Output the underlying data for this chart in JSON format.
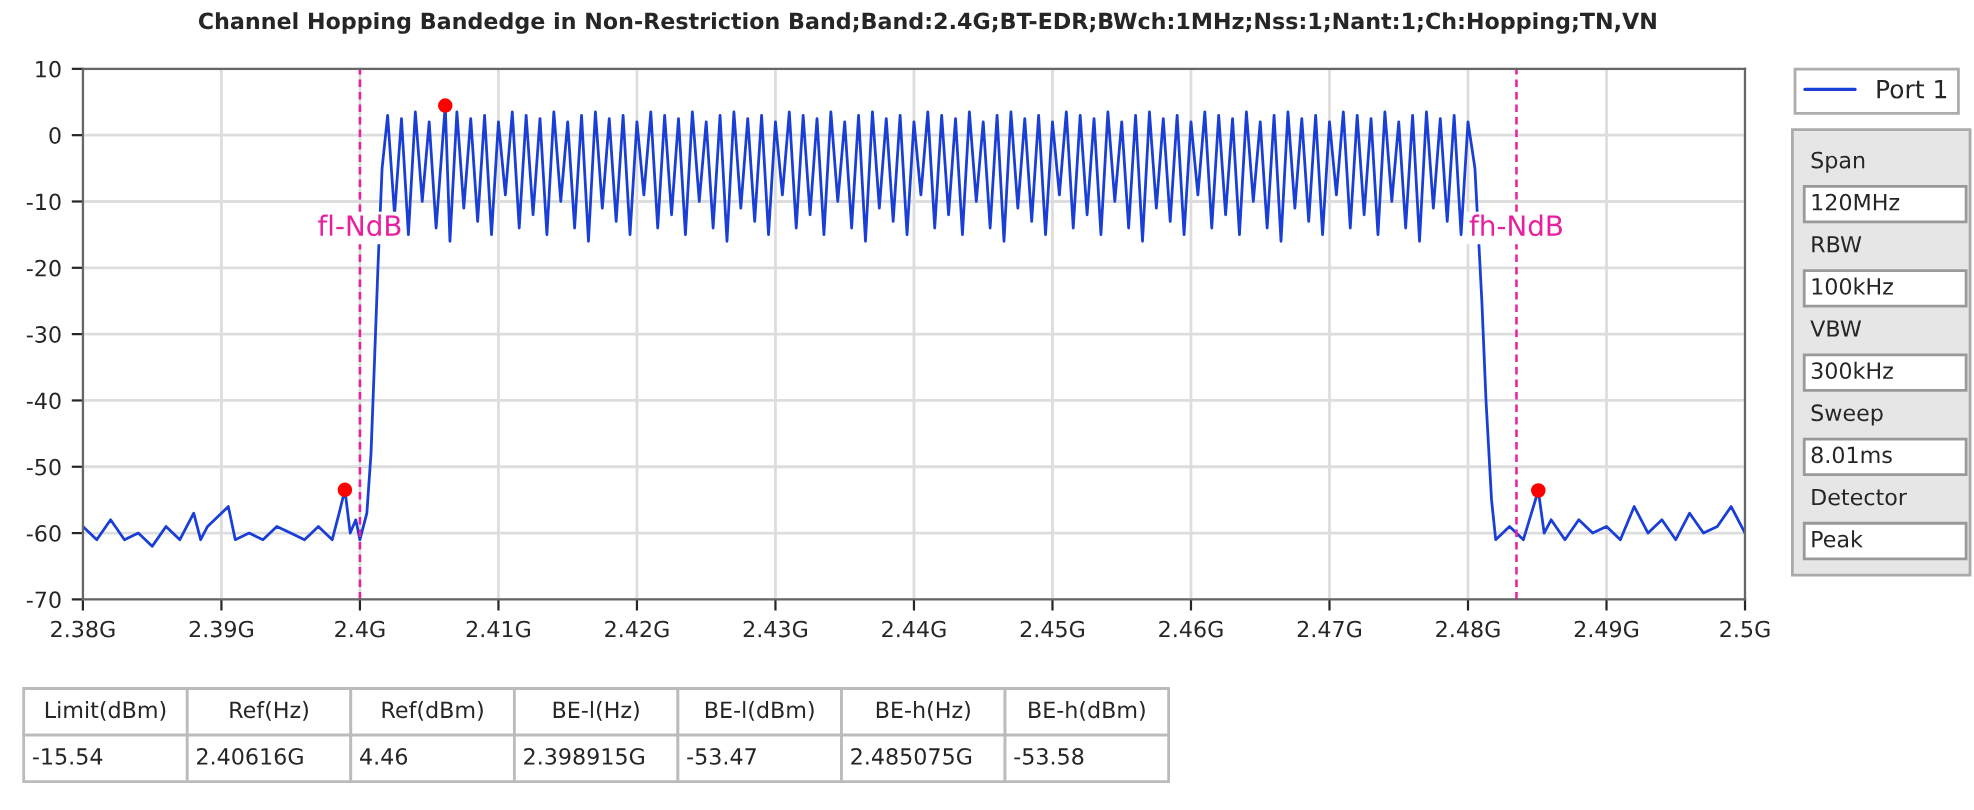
{
  "chart_data": {
    "type": "line",
    "title": "Channel Hopping Bandedge in Non-Restriction Band;Band:2.4G;BT-EDR;BWch:1MHz;Nss:1;Nant:1;Ch:Hopping;TN,VN",
    "xlim": [
      2.38,
      2.5
    ],
    "xticks": [
      {
        "value": 2.38,
        "label": "2.38G"
      },
      {
        "value": 2.39,
        "label": "2.39G"
      },
      {
        "value": 2.4,
        "label": "2.4G"
      },
      {
        "value": 2.41,
        "label": "2.41G"
      },
      {
        "value": 2.42,
        "label": "2.42G"
      },
      {
        "value": 2.43,
        "label": "2.43G"
      },
      {
        "value": 2.44,
        "label": "2.44G"
      },
      {
        "value": 2.45,
        "label": "2.45G"
      },
      {
        "value": 2.46,
        "label": "2.46G"
      },
      {
        "value": 2.47,
        "label": "2.47G"
      },
      {
        "value": 2.48,
        "label": "2.48G"
      },
      {
        "value": 2.49,
        "label": "2.49G"
      },
      {
        "value": 2.5,
        "label": "2.5G"
      }
    ],
    "ylim": [
      -70,
      10
    ],
    "yticks": [
      -70,
      -60,
      -50,
      -40,
      -30,
      -20,
      -10,
      0,
      10
    ],
    "grid": true,
    "legend": "right",
    "series": [
      {
        "name": "Port 1",
        "color": "#1a3fd6",
        "marker": "none",
        "line_style": "solid",
        "x": [
          2.38,
          2.381,
          2.382,
          2.383,
          2.384,
          2.385,
          2.386,
          2.387,
          2.388,
          2.3885,
          2.389,
          2.3905,
          2.391,
          2.392,
          2.393,
          2.394,
          2.395,
          2.396,
          2.397,
          2.398,
          2.3985,
          2.398915,
          2.3993,
          2.3997,
          2.4,
          2.4005,
          2.4008,
          2.401,
          2.4013,
          2.4016,
          2.402,
          2.4025,
          2.403,
          2.4035,
          2.404,
          2.4045,
          2.405,
          2.4055,
          2.40616,
          2.4065,
          2.407,
          2.4075,
          2.408,
          2.4085,
          2.409,
          2.4095,
          2.41,
          2.4105,
          2.411,
          2.4115,
          2.412,
          2.4125,
          2.413,
          2.4135,
          2.414,
          2.4145,
          2.415,
          2.4155,
          2.416,
          2.4165,
          2.417,
          2.4175,
          2.418,
          2.4185,
          2.419,
          2.4195,
          2.42,
          2.4205,
          2.421,
          2.4215,
          2.422,
          2.4225,
          2.423,
          2.4235,
          2.424,
          2.4245,
          2.425,
          2.4255,
          2.426,
          2.4265,
          2.427,
          2.4275,
          2.428,
          2.4285,
          2.429,
          2.4295,
          2.43,
          2.4305,
          2.431,
          2.4315,
          2.432,
          2.4325,
          2.433,
          2.4335,
          2.434,
          2.4345,
          2.435,
          2.4355,
          2.436,
          2.4365,
          2.437,
          2.4375,
          2.438,
          2.4385,
          2.439,
          2.4395,
          2.44,
          2.4405,
          2.441,
          2.4415,
          2.442,
          2.4425,
          2.443,
          2.4435,
          2.444,
          2.4445,
          2.445,
          2.4455,
          2.446,
          2.4465,
          2.447,
          2.4475,
          2.448,
          2.4485,
          2.449,
          2.4495,
          2.45,
          2.4505,
          2.451,
          2.4515,
          2.452,
          2.4525,
          2.453,
          2.4535,
          2.454,
          2.4545,
          2.455,
          2.4555,
          2.456,
          2.4565,
          2.457,
          2.4575,
          2.458,
          2.4585,
          2.459,
          2.4595,
          2.46,
          2.4605,
          2.461,
          2.4615,
          2.462,
          2.4625,
          2.463,
          2.4635,
          2.464,
          2.4645,
          2.465,
          2.4655,
          2.466,
          2.4665,
          2.467,
          2.4675,
          2.468,
          2.4685,
          2.469,
          2.4695,
          2.47,
          2.4705,
          2.471,
          2.4715,
          2.472,
          2.4725,
          2.473,
          2.4735,
          2.474,
          2.4745,
          2.475,
          2.4755,
          2.476,
          2.4765,
          2.477,
          2.4775,
          2.478,
          2.4785,
          2.479,
          2.4795,
          2.48,
          2.4805,
          2.481,
          2.4813,
          2.4817,
          2.482,
          2.483,
          2.484,
          2.485075,
          2.4855,
          2.486,
          2.487,
          2.488,
          2.489,
          2.49,
          2.491,
          2.492,
          2.493,
          2.494,
          2.495,
          2.496,
          2.497,
          2.498,
          2.499,
          2.5
        ],
        "values": [
          -59,
          -61,
          -58,
          -61,
          -60,
          -62,
          -59,
          -61,
          -57,
          -61,
          -59,
          -56,
          -61,
          -60,
          -61,
          -59,
          -60,
          -61,
          -59,
          -61,
          -57,
          -53.47,
          -60,
          -58,
          -61,
          -57,
          -48,
          -37,
          -20,
          -5,
          3,
          -12,
          2.5,
          -15,
          3.5,
          -10,
          2,
          -14,
          4.46,
          -16,
          3.5,
          -11,
          2.5,
          -13,
          3,
          -15,
          2,
          -9,
          3.5,
          -14,
          3,
          -12,
          2.5,
          -15,
          3.5,
          -10,
          2,
          -14,
          3,
          -16,
          3.5,
          -11,
          2.5,
          -13,
          3,
          -15,
          2,
          -9,
          3.5,
          -14,
          3,
          -12,
          2.5,
          -15,
          3.5,
          -10,
          2,
          -14,
          3,
          -16,
          3.5,
          -11,
          2.5,
          -13,
          3,
          -15,
          2,
          -9,
          3.5,
          -14,
          3,
          -12,
          2.5,
          -15,
          3.5,
          -10,
          2,
          -14,
          3,
          -16,
          3.5,
          -11,
          2.5,
          -13,
          3,
          -15,
          2,
          -9,
          3.5,
          -14,
          3,
          -12,
          2.5,
          -15,
          3.5,
          -10,
          2,
          -14,
          3,
          -16,
          3.5,
          -11,
          2.5,
          -13,
          3,
          -15,
          2,
          -9,
          3.5,
          -14,
          3,
          -12,
          2.5,
          -15,
          3.5,
          -10,
          2,
          -14,
          3,
          -16,
          3.5,
          -11,
          2.5,
          -13,
          3,
          -15,
          2,
          -9,
          3.5,
          -14,
          3,
          -12,
          2.5,
          -15,
          3.5,
          -10,
          2,
          -14,
          3,
          -16,
          3.5,
          -11,
          2.5,
          -13,
          3,
          -15,
          2,
          -9,
          3.5,
          -14,
          3,
          -12,
          2.5,
          -15,
          3.5,
          -10,
          2,
          -14,
          3,
          -16,
          3.5,
          -11,
          2.5,
          -13,
          3,
          -15,
          2,
          -5,
          -25,
          -40,
          -55,
          -61,
          -59,
          -61,
          -53.58,
          -60,
          -58,
          -61,
          -58,
          -60,
          -59,
          -61,
          -56,
          -60,
          -58,
          -61,
          -57,
          -60,
          -59,
          -56,
          -60
        ]
      },
      {
        "type": "scatter",
        "color": "#ff0000",
        "marker": "circle",
        "x": [
          2.40616,
          2.398915,
          2.485075
        ],
        "values": [
          4.46,
          -53.47,
          -53.58
        ]
      }
    ],
    "ref_lines": [
      {
        "axis": "x",
        "value": 2.4,
        "label": "fl-NdB",
        "color": "#e8209f",
        "line_style": "dashed"
      },
      {
        "axis": "x",
        "value": 2.4835,
        "label": "fh-NdB",
        "color": "#e8209f",
        "line_style": "dashed"
      }
    ],
    "annotations": [
      "Span",
      "120MHz",
      "RBW",
      "100kHz",
      "VBW",
      "300kHz",
      "Sweep",
      "8.01ms",
      "Detector",
      "Peak",
      "Limit(dBm)",
      "Ref(Hz)",
      "Ref(dBm)",
      "BE-l(Hz)",
      "BE-l(dBm)",
      "BE-h(Hz)",
      "BE-h(dBm)",
      "-15.54",
      "2.40616G",
      "4.46",
      "2.398915G",
      "-53.47",
      "2.485075G",
      "-53.58"
    ]
  }
}
